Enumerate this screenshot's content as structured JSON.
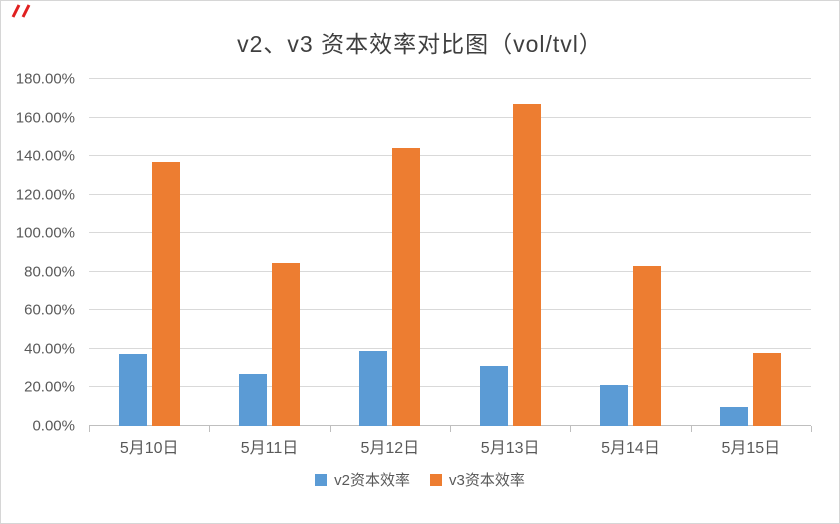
{
  "chart_data": {
    "type": "bar",
    "title": "v2、v3 资本效率对比图（vol/tvl）",
    "categories": [
      "5月10日",
      "5月11日",
      "5月12日",
      "5月13日",
      "5月14日",
      "5月15日"
    ],
    "series": [
      {
        "name": "v2资本效率",
        "color": "#5B9BD5",
        "values": [
          37.3,
          27.2,
          38.7,
          31.3,
          21.5,
          10.0
        ]
      },
      {
        "name": "v3资本效率",
        "color": "#ED7D31",
        "values": [
          137.0,
          84.5,
          144.0,
          167.0,
          83.0,
          38.0
        ]
      }
    ],
    "ylim": [
      0,
      180
    ],
    "ytick_step": 20,
    "ytick_labels": [
      "0.00%",
      "20.00%",
      "40.00%",
      "60.00%",
      "80.00%",
      "100.00%",
      "120.00%",
      "140.00%",
      "160.00%",
      "180.00%"
    ],
    "grid": true,
    "legend_position": "bottom",
    "colors": {
      "grid": "#D9D9D9",
      "axis": "#BFBFBF",
      "text": "#595959",
      "title": "#3F3F3F",
      "corner_mark": "#E02020"
    }
  }
}
